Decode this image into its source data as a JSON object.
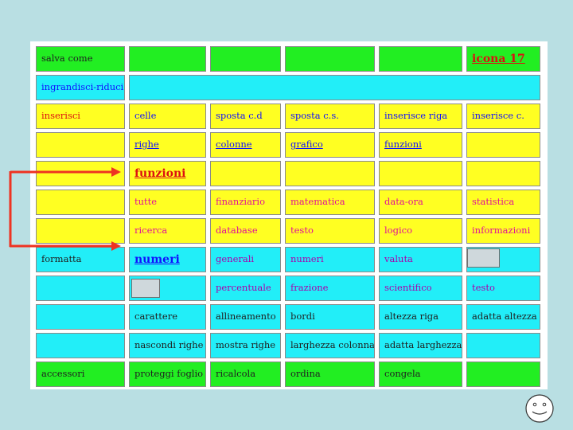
{
  "menu": {
    "salva_come": "salva come",
    "icona": "icona 17",
    "ingrandisci": "ingrandisci-riduci",
    "inserisci": "inserisci",
    "inserisci_items": [
      "celle",
      "sposta c.d",
      "sposta c.s.",
      "inserisce riga",
      "inserisce c."
    ],
    "inserisci_row2": [
      "righe",
      "colonne",
      "grafico",
      "funzioni"
    ],
    "funzioni": "funzioni",
    "funzioni_row1": [
      "tutte",
      "finanziario",
      "matematica",
      "data-ora",
      "statistica"
    ],
    "funzioni_row2": [
      "ricerca",
      "database",
      "testo",
      "logico",
      "informazioni"
    ],
    "formatta": "formatta",
    "numeri": "numeri",
    "numeri_row1": [
      "generali",
      "numeri",
      "valuta"
    ],
    "numeri_row2": [
      "percentuale",
      "frazione",
      "scientifico",
      "testo"
    ],
    "format_row3": [
      "carattere",
      "allineamento",
      "bordi",
      "altezza riga",
      "adatta altezza"
    ],
    "format_row4": [
      "nascondi righe",
      "mostra righe",
      "larghezza colonna",
      "adatta larghezza"
    ],
    "accessori": "accessori",
    "accessori_items": [
      "proteggi foglio",
      "ricalcola",
      "ordina",
      "congela"
    ]
  },
  "colors": {
    "green": "#22ee22",
    "cyan": "#22eef8",
    "yellow": "#ffff22",
    "arrow": "#ee3322"
  },
  "icons": [
    "right-arrow-icon",
    "smiley-icon"
  ]
}
